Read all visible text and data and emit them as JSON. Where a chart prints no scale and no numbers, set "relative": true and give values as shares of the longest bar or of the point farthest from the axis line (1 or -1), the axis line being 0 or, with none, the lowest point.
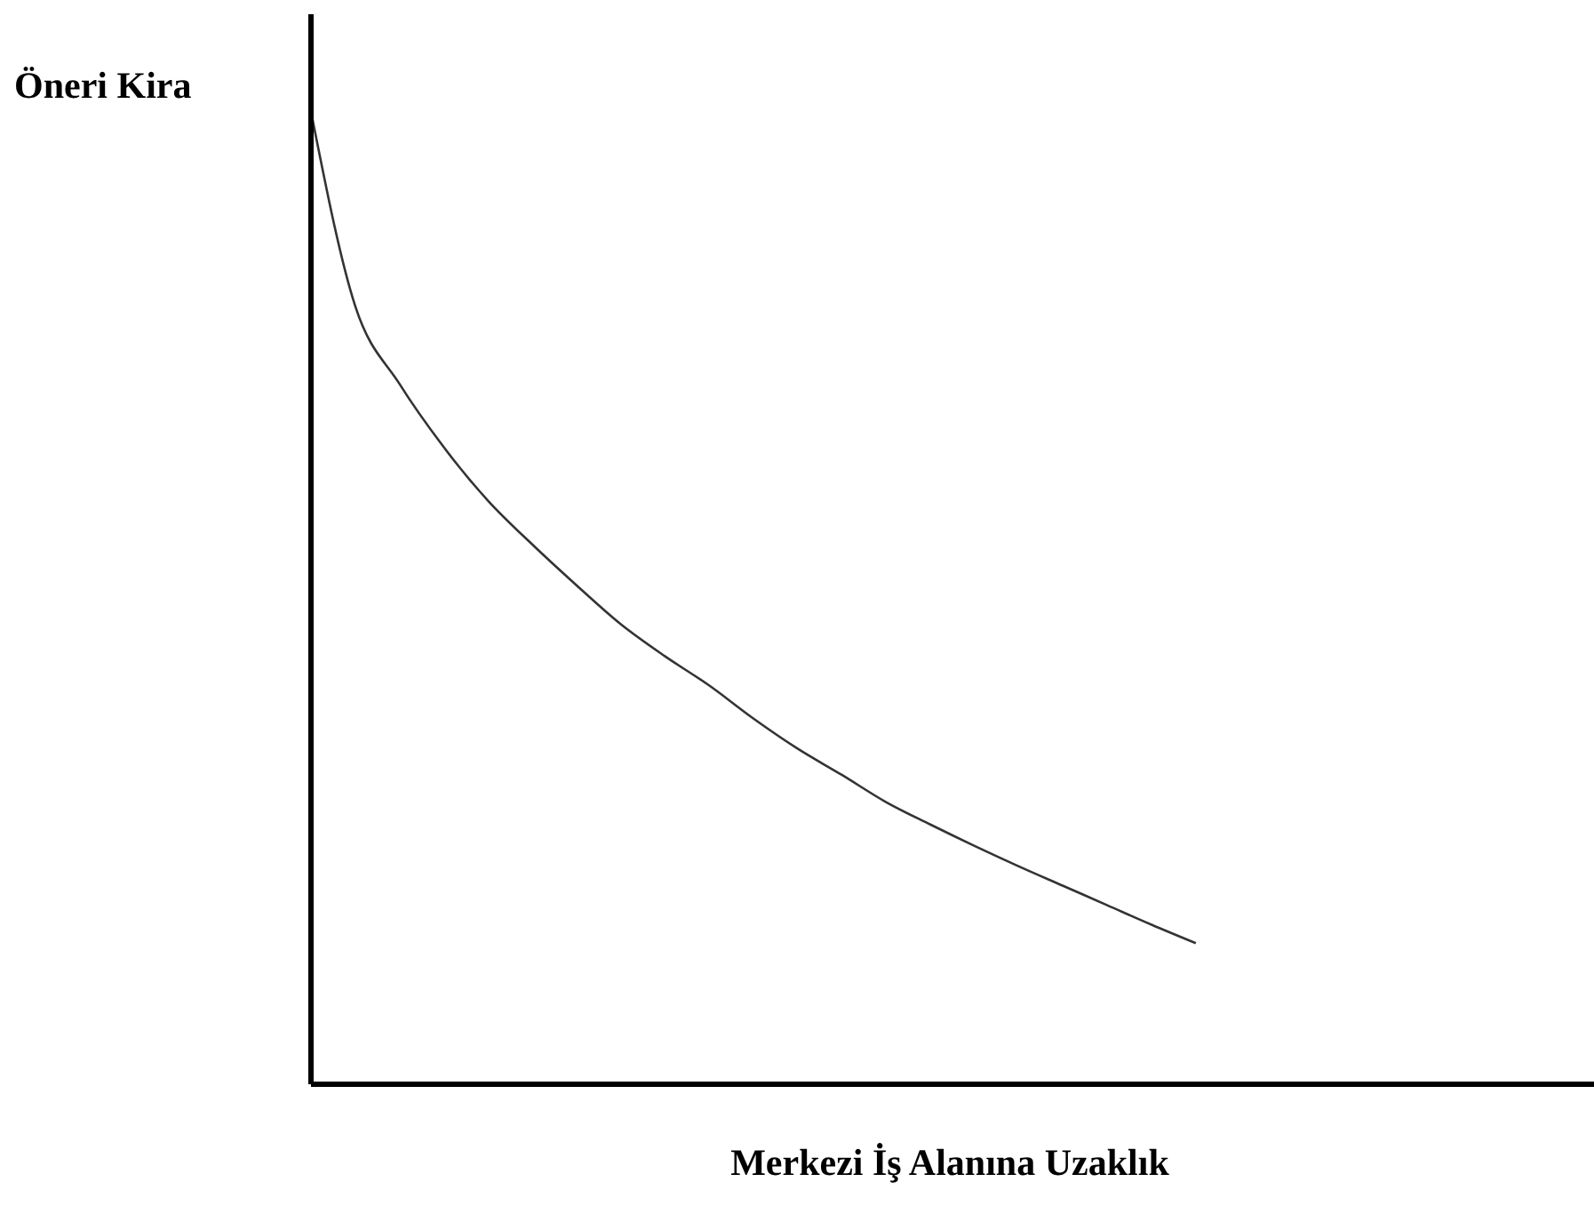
{
  "chart_data": {
    "type": "line",
    "ylabel": "Öneri Kira",
    "xlabel": "Merkezi İş Alanına Uzaklık",
    "relative": true,
    "grid": false,
    "legend": false,
    "marker": "none",
    "line_style": "solid",
    "categories": [
      null,
      null,
      null,
      null,
      null,
      null,
      null,
      null,
      null,
      null,
      null,
      null,
      null,
      null,
      null,
      null,
      null,
      null,
      null,
      null,
      null,
      null,
      null,
      null,
      null,
      null,
      null,
      null,
      null,
      null
    ],
    "series": [
      {
        "color": "#333333",
        "values": [
          1,
          0.8,
          0.72,
          0.655,
          0.6,
          0.555,
          0.513,
          0.473,
          0.44,
          0.41,
          0.376,
          0.345,
          0.318,
          0.29,
          0.267,
          0.245,
          0.224,
          0.204,
          0.184,
          0.164,
          0.145,
          null,
          null,
          null,
          null,
          null,
          null,
          null,
          null,
          null
        ]
      }
    ]
  }
}
